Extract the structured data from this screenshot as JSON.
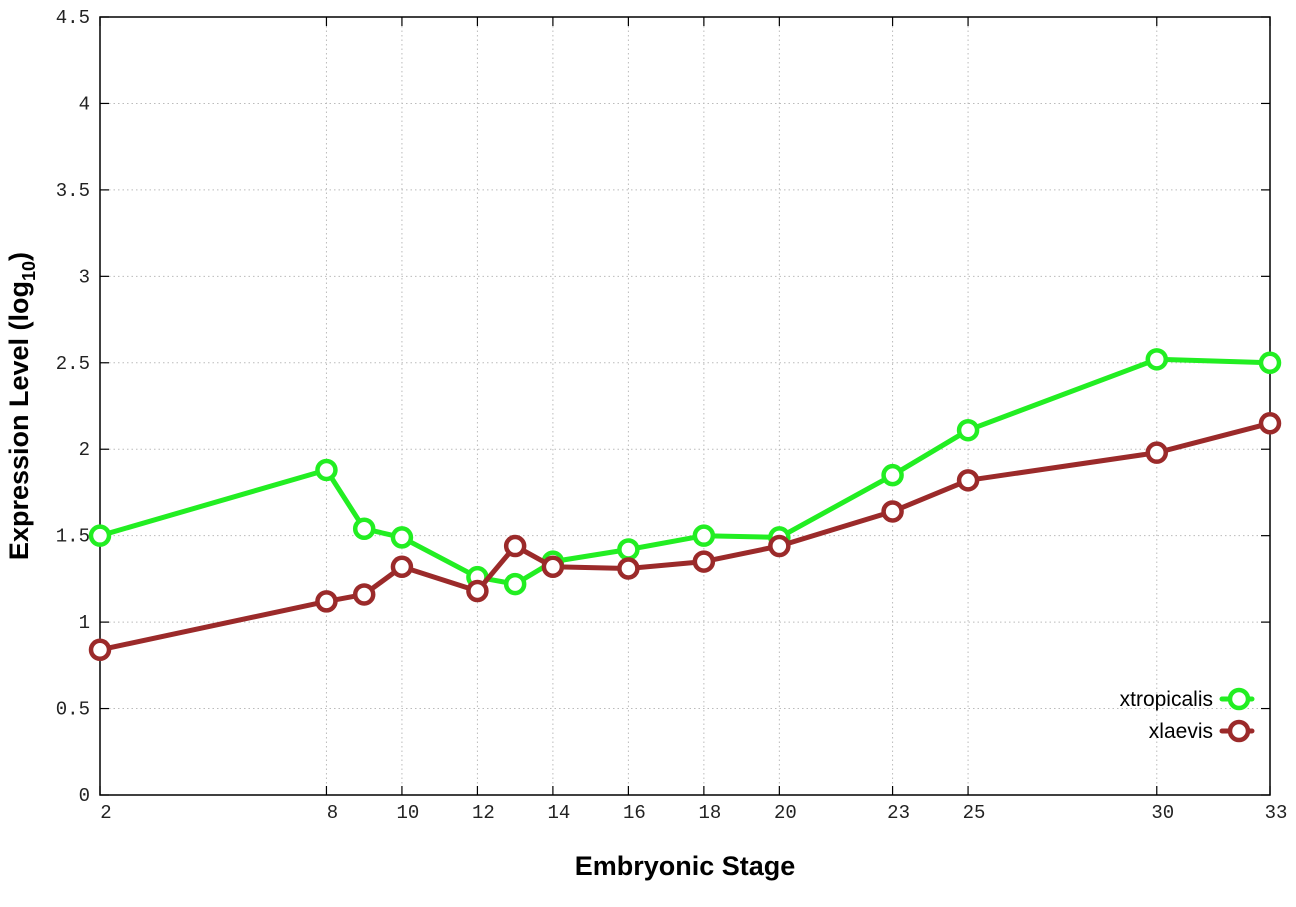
{
  "chart_data": {
    "type": "line",
    "title": "",
    "xlabel": "Embryonic Stage",
    "ylabel_main": "Expression Level (log",
    "ylabel_sub": "10",
    "ylabel_close": ")",
    "x": [
      2,
      8,
      9,
      10,
      12,
      13,
      14,
      16,
      18,
      20,
      23,
      25,
      30,
      33
    ],
    "x_ticks": [
      {
        "value": 2,
        "label": "2"
      },
      {
        "value": 8,
        "label": "8"
      },
      {
        "value": 10,
        "label": "10"
      },
      {
        "value": 12,
        "label": "12"
      },
      {
        "value": 14,
        "label": "14"
      },
      {
        "value": 16,
        "label": "16"
      },
      {
        "value": 18,
        "label": "18"
      },
      {
        "value": 20,
        "label": "20"
      },
      {
        "value": 23,
        "label": "23"
      },
      {
        "value": 25,
        "label": "25"
      },
      {
        "value": 30,
        "label": "30"
      },
      {
        "value": 33,
        "label": "33"
      }
    ],
    "y_ticks": [
      {
        "value": 0,
        "label": "0"
      },
      {
        "value": 0.5,
        "label": "0.5"
      },
      {
        "value": 1,
        "label": "1"
      },
      {
        "value": 1.5,
        "label": "1.5"
      },
      {
        "value": 2,
        "label": "2"
      },
      {
        "value": 2.5,
        "label": "2.5"
      },
      {
        "value": 3,
        "label": "3"
      },
      {
        "value": 3.5,
        "label": "3.5"
      },
      {
        "value": 4,
        "label": "4"
      },
      {
        "value": 4.5,
        "label": "4.5"
      }
    ],
    "xlim": [
      2,
      33
    ],
    "ylim": [
      0,
      4.5
    ],
    "grid": true,
    "legend_position": "bottom-right",
    "series": [
      {
        "name": "xtropicalis",
        "color": "#22ee22",
        "values": [
          1.5,
          1.88,
          1.54,
          1.49,
          1.26,
          1.22,
          1.35,
          1.42,
          1.5,
          1.49,
          1.85,
          2.11,
          2.52,
          2.5
        ]
      },
      {
        "name": "xlaevis",
        "color": "#9b2a2a",
        "values": [
          0.84,
          1.12,
          1.16,
          1.32,
          1.18,
          1.44,
          1.32,
          1.31,
          1.35,
          1.44,
          1.64,
          1.82,
          1.98,
          2.15
        ]
      }
    ]
  }
}
